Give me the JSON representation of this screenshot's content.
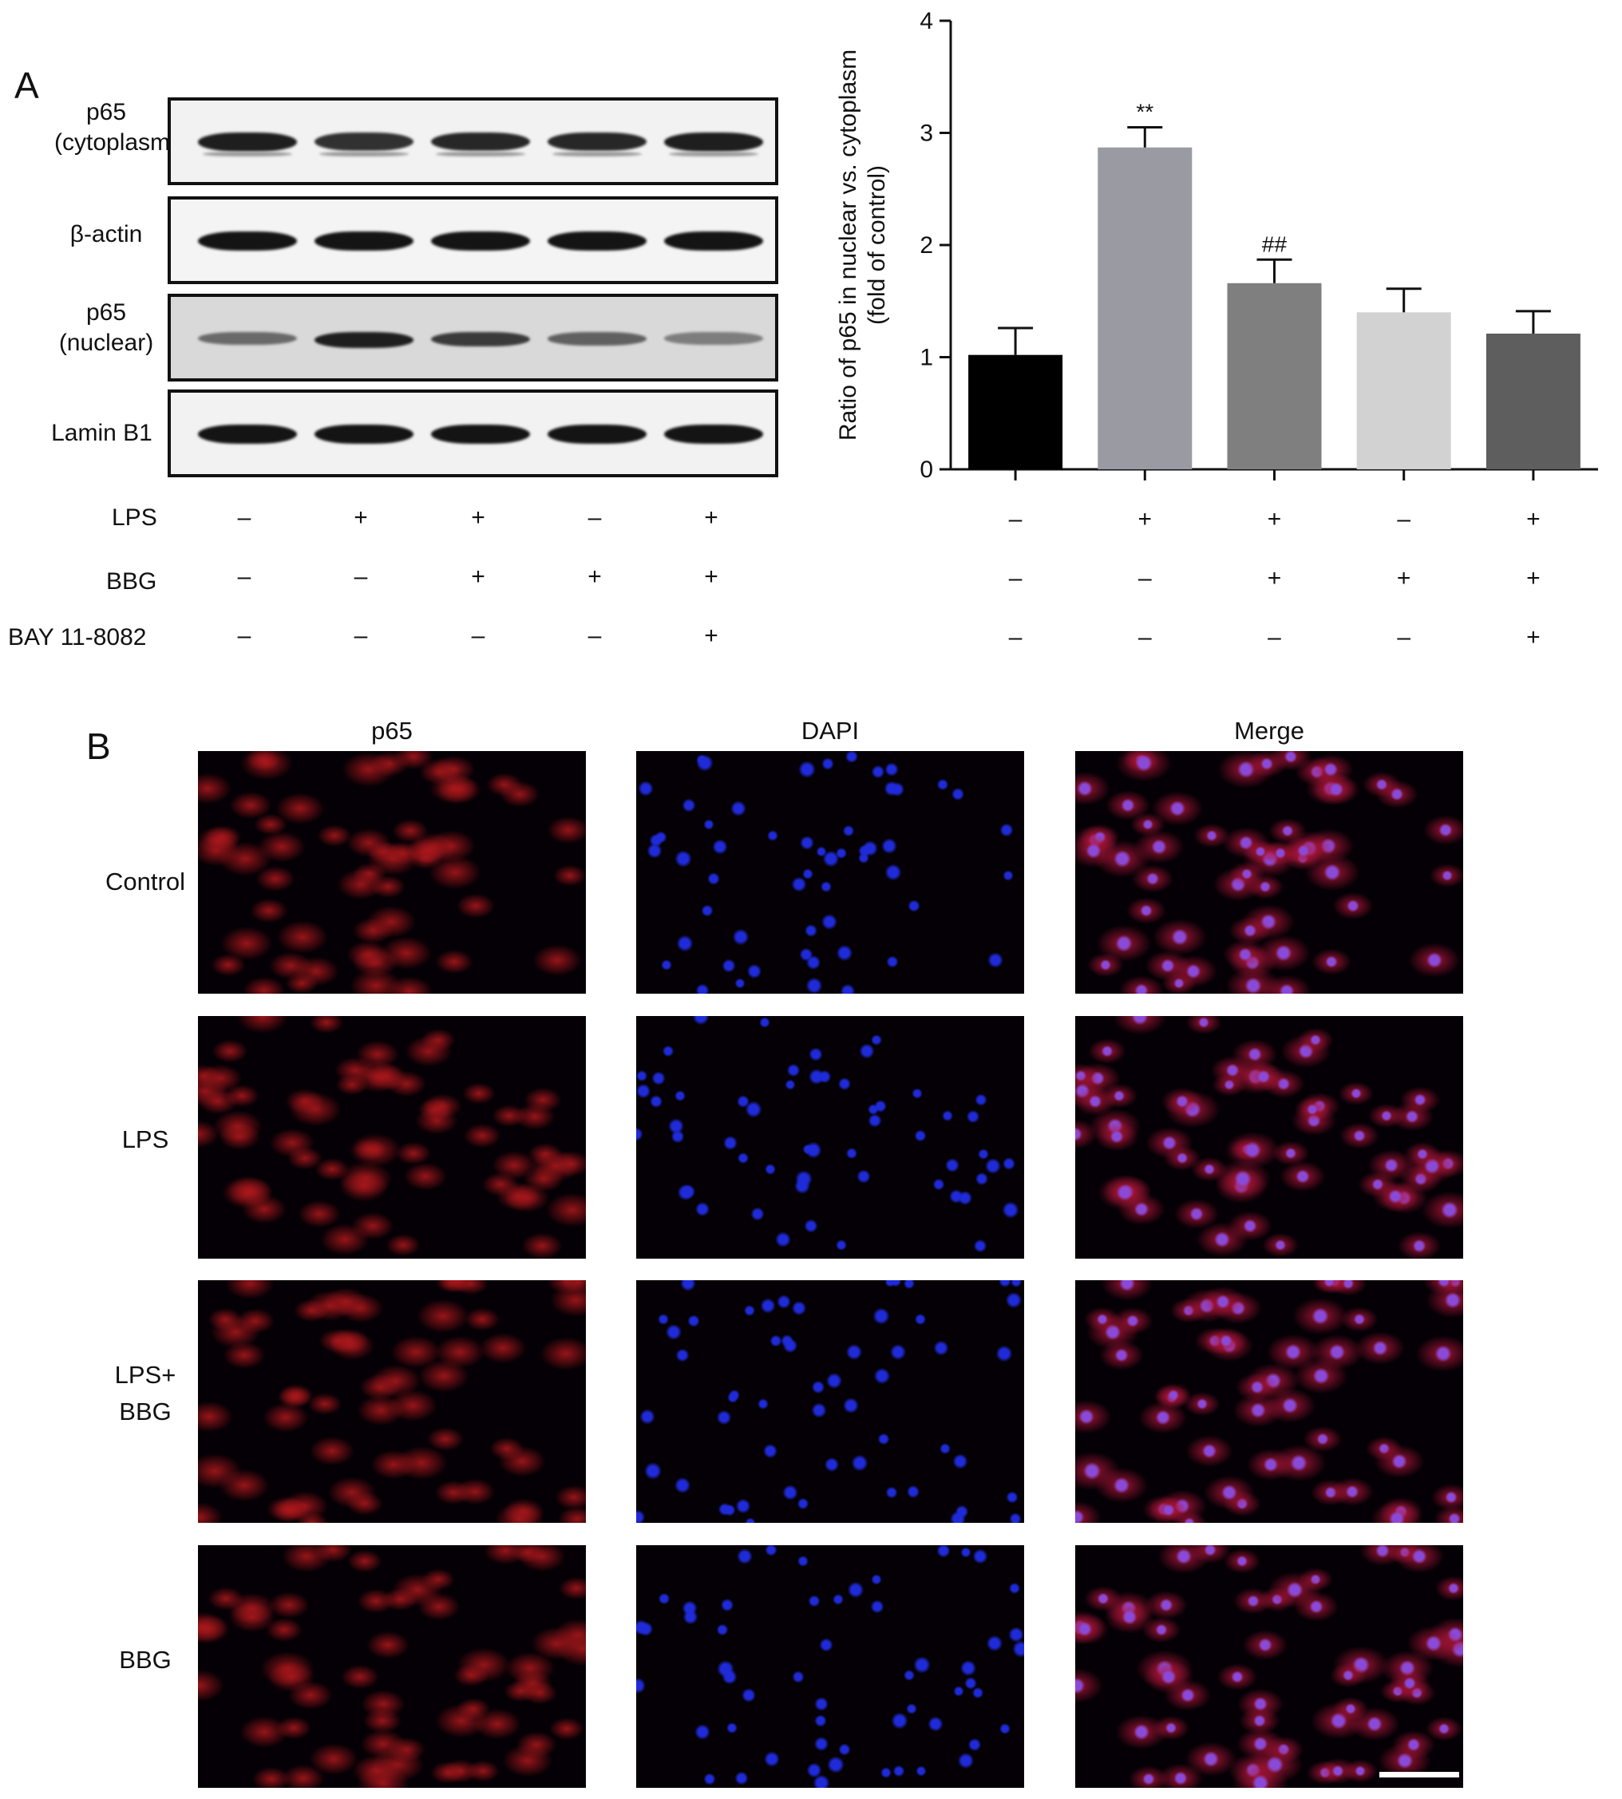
{
  "panel_a": {
    "letter": "A",
    "blots": [
      {
        "label_lines": [
          "p65",
          "(cytoplasm)"
        ],
        "intensity": [
          0.95,
          0.85,
          0.9,
          0.9,
          0.95
        ],
        "bg": "#f2f2f2",
        "second_band": true
      },
      {
        "label_lines": [
          "β-actin"
        ],
        "intensity": [
          1.0,
          1.0,
          1.0,
          1.0,
          1.0
        ],
        "bg": "#f4f4f4",
        "second_band": false
      },
      {
        "label_lines": [
          "p65",
          "(nuclear)"
        ],
        "intensity": [
          0.55,
          0.95,
          0.8,
          0.6,
          0.45
        ],
        "bg": "#d9d9d9",
        "second_band": false
      },
      {
        "label_lines": [
          "Lamin B1"
        ],
        "intensity": [
          1.0,
          1.0,
          1.0,
          1.0,
          1.0
        ],
        "bg": "#f2f2f2",
        "second_band": false
      }
    ],
    "conditions": [
      {
        "label": "LPS",
        "signs": [
          "–",
          "+",
          "+",
          "–",
          "+"
        ]
      },
      {
        "label": "BBG",
        "signs": [
          "–",
          "–",
          "+",
          "+",
          "+"
        ]
      },
      {
        "label": "BAY 11-8082",
        "signs": [
          "–",
          "–",
          "–",
          "–",
          "+"
        ]
      }
    ],
    "chart_data": {
      "type": "bar",
      "ylabel_lines": [
        "Ratio of p65 in nuclear vs. cytoplasm",
        "(fold of control)"
      ],
      "ylim": [
        0,
        4
      ],
      "yticks": [
        "0",
        "1",
        "2",
        "3",
        "4"
      ],
      "values": [
        1.02,
        2.87,
        1.66,
        1.4,
        1.21
      ],
      "errors": [
        0.24,
        0.18,
        0.21,
        0.21,
        0.2
      ],
      "colors": [
        "#000000",
        "#9a9aa2",
        "#7f7f7f",
        "#d2d2d2",
        "#5e5e5e"
      ],
      "annotations": [
        "",
        "**",
        "##",
        "",
        ""
      ],
      "conditions": [
        {
          "signs": [
            "–",
            "+",
            "+",
            "–",
            "+"
          ]
        },
        {
          "signs": [
            "–",
            "–",
            "+",
            "+",
            "+"
          ]
        },
        {
          "signs": [
            "–",
            "–",
            "–",
            "–",
            "+"
          ]
        }
      ]
    }
  },
  "panel_b": {
    "letter": "B",
    "columns": [
      "p65",
      "DAPI",
      "Merge"
    ],
    "rows": [
      {
        "label_lines": [
          "Control"
        ]
      },
      {
        "label_lines": [
          "LPS"
        ]
      },
      {
        "label_lines": [
          "LPS+",
          "BBG"
        ]
      },
      {
        "label_lines": [
          "BBG"
        ]
      }
    ],
    "colors": {
      "p65": "#b0181c",
      "dapi": "#1f2ad8",
      "merge_cyto": "#b3163a",
      "merge_nuc": "#8a4ad8"
    }
  }
}
